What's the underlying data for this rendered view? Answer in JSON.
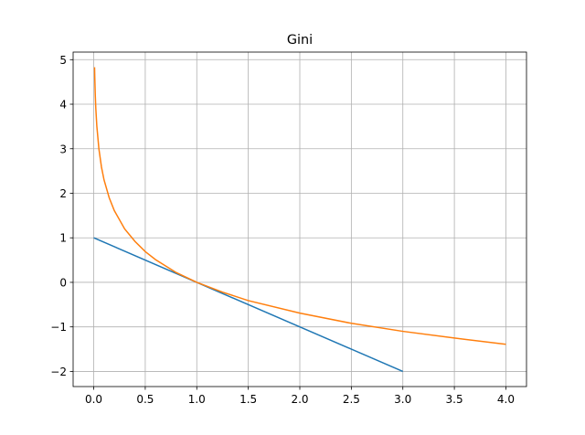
{
  "chart_data": {
    "type": "line",
    "title": "Gini",
    "series": [
      {
        "color": "#1f77b4",
        "x": [
          0,
          3
        ],
        "values": [
          1,
          -2
        ]
      },
      {
        "color": "#ff7f0e",
        "x": [
          0.008,
          0.01,
          0.015,
          0.02,
          0.03,
          0.05,
          0.075,
          0.1,
          0.15,
          0.2,
          0.3,
          0.4,
          0.5,
          0.6,
          0.8,
          1,
          1.25,
          1.5,
          2,
          2.5,
          3,
          3.5,
          4
        ],
        "values": [
          4.83,
          4.61,
          4.2,
          3.91,
          3.51,
          3.0,
          2.59,
          2.3,
          1.9,
          1.61,
          1.2,
          0.92,
          0.69,
          0.51,
          0.22,
          0,
          -0.22,
          -0.41,
          -0.69,
          -0.92,
          -1.1,
          -1.25,
          -1.39
        ]
      }
    ],
    "xlim": [
      -0.2,
      4.2
    ],
    "xticks": [
      {
        "value": 0,
        "label": "0.0"
      },
      0.5,
      {
        "value": 1,
        "label": "1.0"
      },
      1.5,
      {
        "value": 2,
        "label": "2.0"
      },
      2.5,
      {
        "value": 3,
        "label": "3.0"
      },
      3.5,
      {
        "value": 4,
        "label": "4.0"
      }
    ],
    "ylim": [
      -2.34,
      5.17
    ],
    "yticks": [
      {
        "value": -2,
        "label": "−2"
      },
      {
        "value": -1,
        "label": "−1"
      },
      0,
      1,
      2,
      3,
      4,
      5
    ],
    "grid": true
  }
}
